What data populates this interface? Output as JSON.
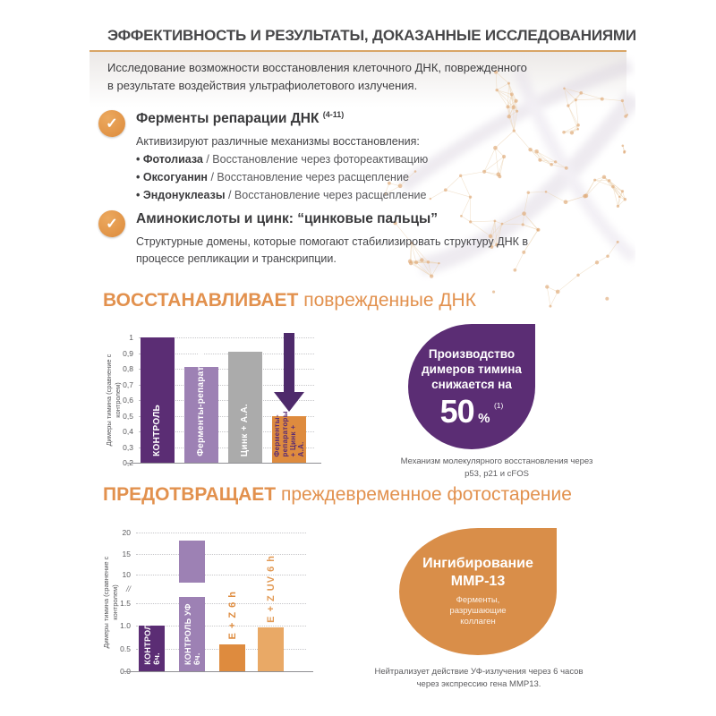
{
  "theme": {
    "accent_orange": "#e2914e",
    "rule_orange": "#d8a566",
    "dark_purple": "#5b2d74",
    "light_purple": "#9d81b4",
    "gray_bar": "#ababab",
    "orange_bar": "#de8b3e",
    "light_orange_bar": "#e9a966",
    "badge_orange": "#d98e49",
    "arrow_purple": "#4e2a6b"
  },
  "icons": {
    "check": "✓"
  },
  "header": {
    "title": "ЭФФЕКТИВНОСТЬ И РЕЗУЛЬТАТЫ, ДОКАЗАННЫЕ ИССЛЕДОВАНИЯМИ",
    "intro": "Исследование возможности восстановления клеточного ДНК, поврежденного в результате воздействия ультрафиолетового излучения."
  },
  "bullets": [
    {
      "icon": "check-icon",
      "title": "Ферменты репарации ДНК",
      "title_sup": "(4-11)",
      "lead": "Активизируют различные механизмы восстановления:",
      "items": [
        {
          "term": "• Фотолиаза",
          "desc": " / Восстановление через фотореактивацию"
        },
        {
          "term": "• Оксогуанин",
          "desc": " / Восстановление через расщепление"
        },
        {
          "term": "• Эндонуклеазы",
          "desc": " / Восстановление через расщепление"
        }
      ]
    },
    {
      "icon": "check-icon",
      "title": "Аминокислоты и цинк: “цинковые пальцы”",
      "lead": "Структурные домены, которые помогают стабилизировать структуру ДНК в процессе репликации и транскрипции."
    }
  ],
  "sections": [
    {
      "heading_strong": "ВОССТАНАВЛИВАЕТ",
      "heading_rest": " поврежденные ДНК",
      "badge": {
        "lines": [
          "Производство",
          "димеров тимина",
          "снижается на"
        ],
        "value": "50",
        "unit": "%",
        "value_sup": "(1)"
      },
      "caption": "Механизм молекулярного восстановления через p53, p21 и cFOS"
    },
    {
      "heading_strong": "ПРЕДОТВРАЩАЕТ",
      "heading_rest": " преждевременное фотостарение",
      "badge": {
        "lines": [
          "Ингибирование",
          "ММР-13"
        ],
        "sublines": [
          "Ферменты,",
          "разрушающие",
          "коллаген"
        ]
      },
      "caption": "Нейтрализует действие УФ-излучения через 6 часов через экспрессию гена ММР13."
    }
  ],
  "chart_data": [
    {
      "type": "bar",
      "title": "",
      "xlabel": "",
      "ylabel": "Димеры тимина (сравнение с контролем)",
      "ylim": [
        0.2,
        1.0
      ],
      "yticks": [
        1.0,
        0.9,
        0.8,
        0.7,
        0.6,
        0.5,
        0.4,
        0.3,
        0.2
      ],
      "ytick_labels": [
        "1",
        "0,9",
        "0,8",
        "0,7",
        "0,6",
        "0,5",
        "0,4",
        "0,3",
        "0,2"
      ],
      "grid": "dotted-horizontal",
      "legend": "none",
      "categories": [
        "КОНТРОЛЬ",
        "Ферменты-репараторы",
        "Цинк + А.А.",
        "Ферменты-репараторы + Цинк + А.А."
      ],
      "values": [
        1.0,
        0.81,
        0.91,
        0.5
      ],
      "bar_colors": [
        "#5b2d74",
        "#9d81b4",
        "#ababab",
        "#de8b3e"
      ],
      "bar_label_colors": [
        "#ffffff",
        "#ffffff",
        "#ffffff",
        "#5b2d74"
      ],
      "annotation": "down-arrow above fourth bar"
    },
    {
      "type": "bar",
      "title": "",
      "xlabel": "",
      "ylabel": "Димеры тимина (сравнение с контролем)",
      "axis_break": true,
      "break_marker": "//",
      "lower_ylim": [
        0.0,
        1.5
      ],
      "lower_yticks": [
        1.5,
        1.0,
        0.5,
        0.0
      ],
      "lower_ytick_labels": [
        "1.5",
        "1.0",
        "0.5",
        "0.0"
      ],
      "upper_ylim": [
        10,
        20
      ],
      "upper_yticks": [
        20,
        15,
        10
      ],
      "upper_ytick_labels": [
        "20",
        "15",
        "10"
      ],
      "grid": "dotted-horizontal",
      "legend": "none",
      "categories": [
        "КОНТРОЛЬ 6ч.",
        "КОНТРОЛЬ УФ 6ч.",
        "E + Z 6 h",
        "E + Z UV 6 h"
      ],
      "values": [
        1.0,
        18,
        0.6,
        0.97
      ],
      "bar_colors": [
        "#5b2d74",
        "#9d81b4",
        "#de8b3e",
        "#e9a966"
      ],
      "label_position": [
        "inside",
        "inside",
        "above",
        "above"
      ],
      "label_colors": [
        "#ffffff",
        "#ffffff",
        "#de8b3e",
        "#e29a55"
      ]
    }
  ]
}
